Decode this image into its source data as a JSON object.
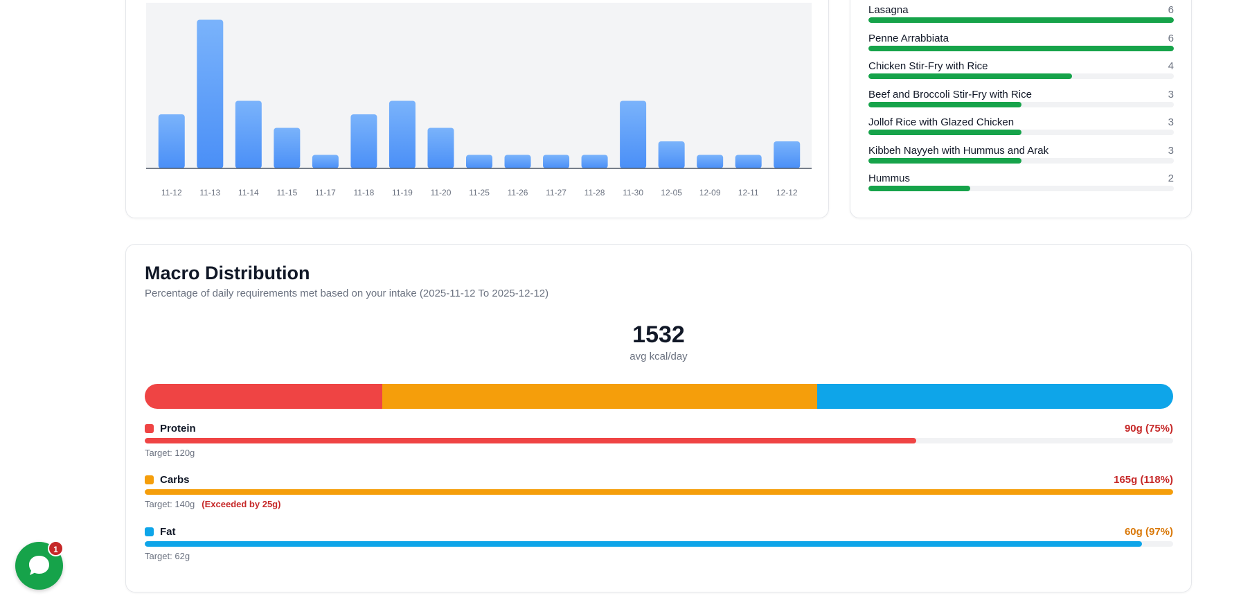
{
  "chart_data": {
    "type": "bar",
    "categories": [
      "11-12",
      "11-13",
      "11-14",
      "11-15",
      "11-17",
      "11-18",
      "11-19",
      "11-20",
      "11-25",
      "11-26",
      "11-27",
      "11-28",
      "11-30",
      "12-05",
      "12-09",
      "12-11",
      "12-12"
    ],
    "values": [
      4,
      11,
      5,
      3,
      1,
      4,
      5,
      3,
      1,
      1,
      1,
      1,
      5,
      2,
      1,
      1,
      2
    ],
    "ylim": [
      0,
      12
    ],
    "grid": false,
    "colors": {
      "bar": "#60a5fa",
      "plot_bg": "#f3f4f6",
      "axis": "#4b5563"
    }
  },
  "top_recipes": [
    {
      "name": "Lasagna",
      "count": "6",
      "fraction": 1.0
    },
    {
      "name": "Penne Arrabbiata",
      "count": "6",
      "fraction": 1.0
    },
    {
      "name": "Chicken Stir-Fry with Rice",
      "count": "4",
      "fraction": 0.667
    },
    {
      "name": "Beef and Broccoli Stir-Fry with Rice",
      "count": "3",
      "fraction": 0.5
    },
    {
      "name": "Jollof Rice with Glazed Chicken",
      "count": "3",
      "fraction": 0.5
    },
    {
      "name": "Kibbeh Nayyeh with Hummus and Arak",
      "count": "3",
      "fraction": 0.5
    },
    {
      "name": "Hummus",
      "count": "2",
      "fraction": 0.333
    }
  ],
  "macro": {
    "title": "Macro Distribution",
    "subtitle": "Percentage of daily requirements met based on your intake (2025-11-12 To 2025-12-12)",
    "kcal_value": "1532",
    "kcal_label": "avg kcal/day",
    "distribution": [
      {
        "name": "Protein",
        "share": 0.231,
        "color": "#ef4444"
      },
      {
        "name": "Carbs",
        "share": 0.423,
        "color": "#f59e0b"
      },
      {
        "name": "Fat",
        "share": 0.346,
        "color": "#0ea5e9"
      }
    ],
    "items": [
      {
        "name": "Protein",
        "value": "90g (75%)",
        "progress": 0.75,
        "target": "Target: 120g",
        "exceeded": "",
        "color": "#ef4444",
        "value_color": "#c62828"
      },
      {
        "name": "Carbs",
        "value": "165g (118%)",
        "progress": 1.0,
        "target": "Target: 140g",
        "exceeded": "(Exceeded by 25g)",
        "color": "#f59e0b",
        "value_color": "#c62828"
      },
      {
        "name": "Fat",
        "value": "60g (97%)",
        "progress": 0.97,
        "target": "Target: 62g",
        "exceeded": "",
        "color": "#0ea5e9",
        "value_color": "#d97706"
      }
    ]
  },
  "chat": {
    "badge": "1",
    "icon": "chat-bubble-icon",
    "color": "#16a34a"
  }
}
